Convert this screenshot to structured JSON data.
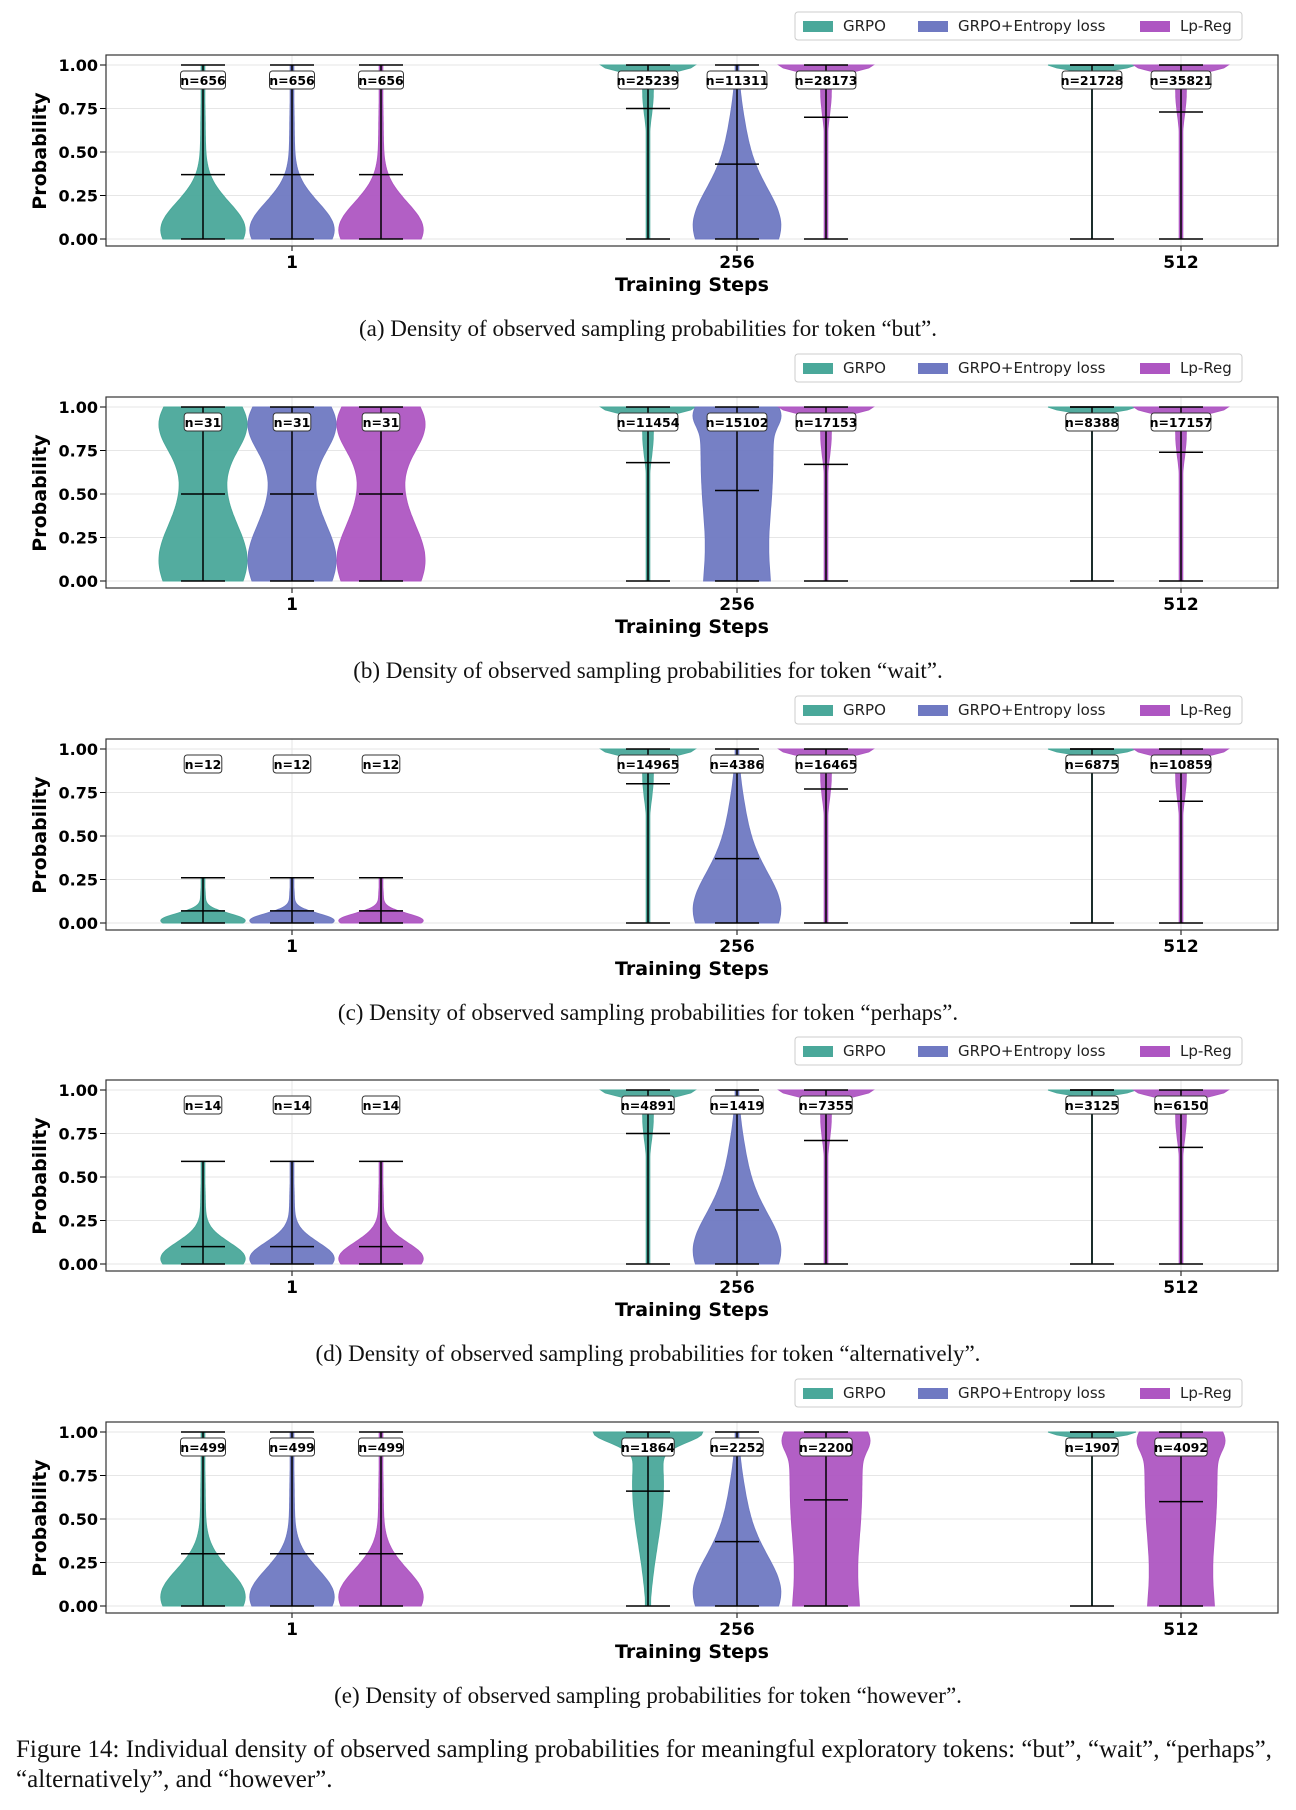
{
  "legend_labels": [
    "GRPO",
    "GRPO+Entropy loss",
    "Lp-Reg"
  ],
  "colors": {
    "GRPO": "#4aa89a",
    "GRPO+Entropy loss": "#6f79c2",
    "Lp-Reg": "#ae56c2"
  },
  "chart_data": [
    {
      "type": "violin",
      "caption": "(a) Density of observed sampling probabilities for token “but”.",
      "xlabel": "Training Steps",
      "ylabel": "Probability",
      "categories": [
        "1",
        "256",
        "512"
      ],
      "yticks": [
        "0.00",
        "0.25",
        "0.50",
        "0.75",
        "1.00"
      ],
      "ylim": [
        0,
        1
      ],
      "legend": "top-right",
      "grid": true,
      "groups": [
        {
          "step": "1",
          "items": [
            {
              "series": "GRPO",
              "n": "n=656",
              "min": 0.0,
              "max": 1.0,
              "median": 0.37,
              "shape": "bottom-heavy"
            },
            {
              "series": "GRPO+Entropy loss",
              "n": "n=656",
              "min": 0.0,
              "max": 1.0,
              "median": 0.37,
              "shape": "bottom-heavy"
            },
            {
              "series": "Lp-Reg",
              "n": "n=656",
              "min": 0.0,
              "max": 1.0,
              "median": 0.37,
              "shape": "bottom-heavy"
            }
          ]
        },
        {
          "step": "256",
          "items": [
            {
              "series": "GRPO",
              "n": "n=25239",
              "min": 0.0,
              "max": 1.0,
              "median": 0.75,
              "shape": "top-heavy"
            },
            {
              "series": "GRPO+Entropy loss",
              "n": "n=11311",
              "min": 0.0,
              "max": 1.0,
              "median": 0.43,
              "shape": "bottom-wide"
            },
            {
              "series": "Lp-Reg",
              "n": "n=28173",
              "min": 0.0,
              "max": 1.0,
              "median": 0.7,
              "shape": "top-heavy"
            }
          ]
        },
        {
          "step": "512",
          "items": [
            {
              "series": "GRPO",
              "n": "n=21728",
              "min": 0.0,
              "max": 1.0,
              "median": 1.0,
              "shape": "top-only"
            },
            {
              "series": "Lp-Reg",
              "n": "n=35821",
              "min": 0.0,
              "max": 1.0,
              "median": 0.73,
              "shape": "top-heavy"
            }
          ]
        }
      ]
    },
    {
      "type": "violin",
      "caption": "(b) Density of observed sampling probabilities for token “wait”.",
      "xlabel": "Training Steps",
      "ylabel": "Probability",
      "categories": [
        "1",
        "256",
        "512"
      ],
      "yticks": [
        "0.00",
        "0.25",
        "0.50",
        "0.75",
        "1.00"
      ],
      "ylim": [
        0,
        1
      ],
      "legend": "top-right",
      "grid": true,
      "groups": [
        {
          "step": "1",
          "items": [
            {
              "series": "GRPO",
              "n": "n=31",
              "min": 0.0,
              "max": 1.0,
              "median": 0.5,
              "shape": "hourglass"
            },
            {
              "series": "GRPO+Entropy loss",
              "n": "n=31",
              "min": 0.0,
              "max": 1.0,
              "median": 0.5,
              "shape": "hourglass"
            },
            {
              "series": "Lp-Reg",
              "n": "n=31",
              "min": 0.0,
              "max": 1.0,
              "median": 0.5,
              "shape": "hourglass"
            }
          ]
        },
        {
          "step": "256",
          "items": [
            {
              "series": "GRPO",
              "n": "n=11454",
              "min": 0.0,
              "max": 1.0,
              "median": 0.68,
              "shape": "top-heavy"
            },
            {
              "series": "GRPO+Entropy loss",
              "n": "n=15102",
              "min": 0.0,
              "max": 1.0,
              "median": 0.52,
              "shape": "wide-uniform"
            },
            {
              "series": "Lp-Reg",
              "n": "n=17153",
              "min": 0.0,
              "max": 1.0,
              "median": 0.67,
              "shape": "top-heavy"
            }
          ]
        },
        {
          "step": "512",
          "items": [
            {
              "series": "GRPO",
              "n": "n=8388",
              "min": 0.0,
              "max": 1.0,
              "median": 1.0,
              "shape": "top-only"
            },
            {
              "series": "Lp-Reg",
              "n": "n=17157",
              "min": 0.0,
              "max": 1.0,
              "median": 0.74,
              "shape": "top-heavy"
            }
          ]
        }
      ]
    },
    {
      "type": "violin",
      "caption": "(c) Density of observed sampling probabilities for token “perhaps”.",
      "xlabel": "Training Steps",
      "ylabel": "Probability",
      "categories": [
        "1",
        "256",
        "512"
      ],
      "yticks": [
        "0.00",
        "0.25",
        "0.50",
        "0.75",
        "1.00"
      ],
      "ylim": [
        0,
        1
      ],
      "legend": "top-right",
      "grid": true,
      "groups": [
        {
          "step": "1",
          "items": [
            {
              "series": "GRPO",
              "n": "n=12",
              "min": 0.0,
              "max": 0.26,
              "median": 0.07,
              "shape": "bottom-heavy"
            },
            {
              "series": "GRPO+Entropy loss",
              "n": "n=12",
              "min": 0.0,
              "max": 0.26,
              "median": 0.07,
              "shape": "bottom-heavy"
            },
            {
              "series": "Lp-Reg",
              "n": "n=12",
              "min": 0.0,
              "max": 0.26,
              "median": 0.07,
              "shape": "bottom-heavy"
            }
          ]
        },
        {
          "step": "256",
          "items": [
            {
              "series": "GRPO",
              "n": "n=14965",
              "min": 0.0,
              "max": 1.0,
              "median": 0.8,
              "shape": "top-heavy"
            },
            {
              "series": "GRPO+Entropy loss",
              "n": "n=4386",
              "min": 0.0,
              "max": 1.0,
              "median": 0.37,
              "shape": "bottom-wide"
            },
            {
              "series": "Lp-Reg",
              "n": "n=16465",
              "min": 0.0,
              "max": 1.0,
              "median": 0.77,
              "shape": "top-heavy"
            }
          ]
        },
        {
          "step": "512",
          "items": [
            {
              "series": "GRPO",
              "n": "n=6875",
              "min": 0.0,
              "max": 1.0,
              "median": 1.0,
              "shape": "top-only"
            },
            {
              "series": "Lp-Reg",
              "n": "n=10859",
              "min": 0.0,
              "max": 1.0,
              "median": 0.7,
              "shape": "top-heavy"
            }
          ]
        }
      ]
    },
    {
      "type": "violin",
      "caption": "(d) Density of observed sampling probabilities for token “alternatively”.",
      "xlabel": "Training Steps",
      "ylabel": "Probability",
      "categories": [
        "1",
        "256",
        "512"
      ],
      "yticks": [
        "0.00",
        "0.25",
        "0.50",
        "0.75",
        "1.00"
      ],
      "ylim": [
        0,
        1
      ],
      "legend": "top-right",
      "grid": true,
      "groups": [
        {
          "step": "1",
          "items": [
            {
              "series": "GRPO",
              "n": "n=14",
              "min": 0.0,
              "max": 0.59,
              "median": 0.1,
              "shape": "bottom-heavy"
            },
            {
              "series": "GRPO+Entropy loss",
              "n": "n=14",
              "min": 0.0,
              "max": 0.59,
              "median": 0.1,
              "shape": "bottom-heavy"
            },
            {
              "series": "Lp-Reg",
              "n": "n=14",
              "min": 0.0,
              "max": 0.59,
              "median": 0.1,
              "shape": "bottom-heavy"
            }
          ]
        },
        {
          "step": "256",
          "items": [
            {
              "series": "GRPO",
              "n": "n=4891",
              "min": 0.0,
              "max": 1.0,
              "median": 0.75,
              "shape": "top-heavy"
            },
            {
              "series": "GRPO+Entropy loss",
              "n": "n=1419",
              "min": 0.0,
              "max": 1.0,
              "median": 0.31,
              "shape": "bottom-wide"
            },
            {
              "series": "Lp-Reg",
              "n": "n=7355",
              "min": 0.0,
              "max": 1.0,
              "median": 0.71,
              "shape": "top-heavy"
            }
          ]
        },
        {
          "step": "512",
          "items": [
            {
              "series": "GRPO",
              "n": "n=3125",
              "min": 0.0,
              "max": 1.0,
              "median": 1.0,
              "shape": "top-only"
            },
            {
              "series": "Lp-Reg",
              "n": "n=6150",
              "min": 0.0,
              "max": 1.0,
              "median": 0.67,
              "shape": "top-heavy"
            }
          ]
        }
      ]
    },
    {
      "type": "violin",
      "caption": "(e) Density of observed sampling probabilities for token “however”.",
      "xlabel": "Training Steps",
      "ylabel": "Probability",
      "categories": [
        "1",
        "256",
        "512"
      ],
      "yticks": [
        "0.00",
        "0.25",
        "0.50",
        "0.75",
        "1.00"
      ],
      "ylim": [
        0,
        1
      ],
      "legend": "top-right",
      "grid": true,
      "groups": [
        {
          "step": "1",
          "items": [
            {
              "series": "GRPO",
              "n": "n=499",
              "min": 0.0,
              "max": 1.0,
              "median": 0.3,
              "shape": "bottom-heavy"
            },
            {
              "series": "GRPO+Entropy loss",
              "n": "n=499",
              "min": 0.0,
              "max": 1.0,
              "median": 0.3,
              "shape": "bottom-heavy"
            },
            {
              "series": "Lp-Reg",
              "n": "n=499",
              "min": 0.0,
              "max": 1.0,
              "median": 0.3,
              "shape": "bottom-heavy"
            }
          ]
        },
        {
          "step": "256",
          "items": [
            {
              "series": "GRPO",
              "n": "n=1864",
              "min": 0.0,
              "max": 1.0,
              "median": 0.66,
              "shape": "top-heavy-wide"
            },
            {
              "series": "GRPO+Entropy loss",
              "n": "n=2252",
              "min": 0.0,
              "max": 1.0,
              "median": 0.37,
              "shape": "bottom-wide"
            },
            {
              "series": "Lp-Reg",
              "n": "n=2200",
              "min": 0.0,
              "max": 1.0,
              "median": 0.61,
              "shape": "wide-uniform"
            }
          ]
        },
        {
          "step": "512",
          "items": [
            {
              "series": "GRPO",
              "n": "n=1907",
              "min": 0.0,
              "max": 1.0,
              "median": 1.0,
              "shape": "top-only"
            },
            {
              "series": "Lp-Reg",
              "n": "n=4092",
              "min": 0.0,
              "max": 1.0,
              "median": 0.6,
              "shape": "wide-uniform"
            }
          ]
        }
      ]
    }
  ],
  "figure_caption": "Figure 14: Individual density of observed sampling probabilities for meaningful exploratory tokens: “but”, “wait”, “perhaps”, “alternatively”, and “however”."
}
